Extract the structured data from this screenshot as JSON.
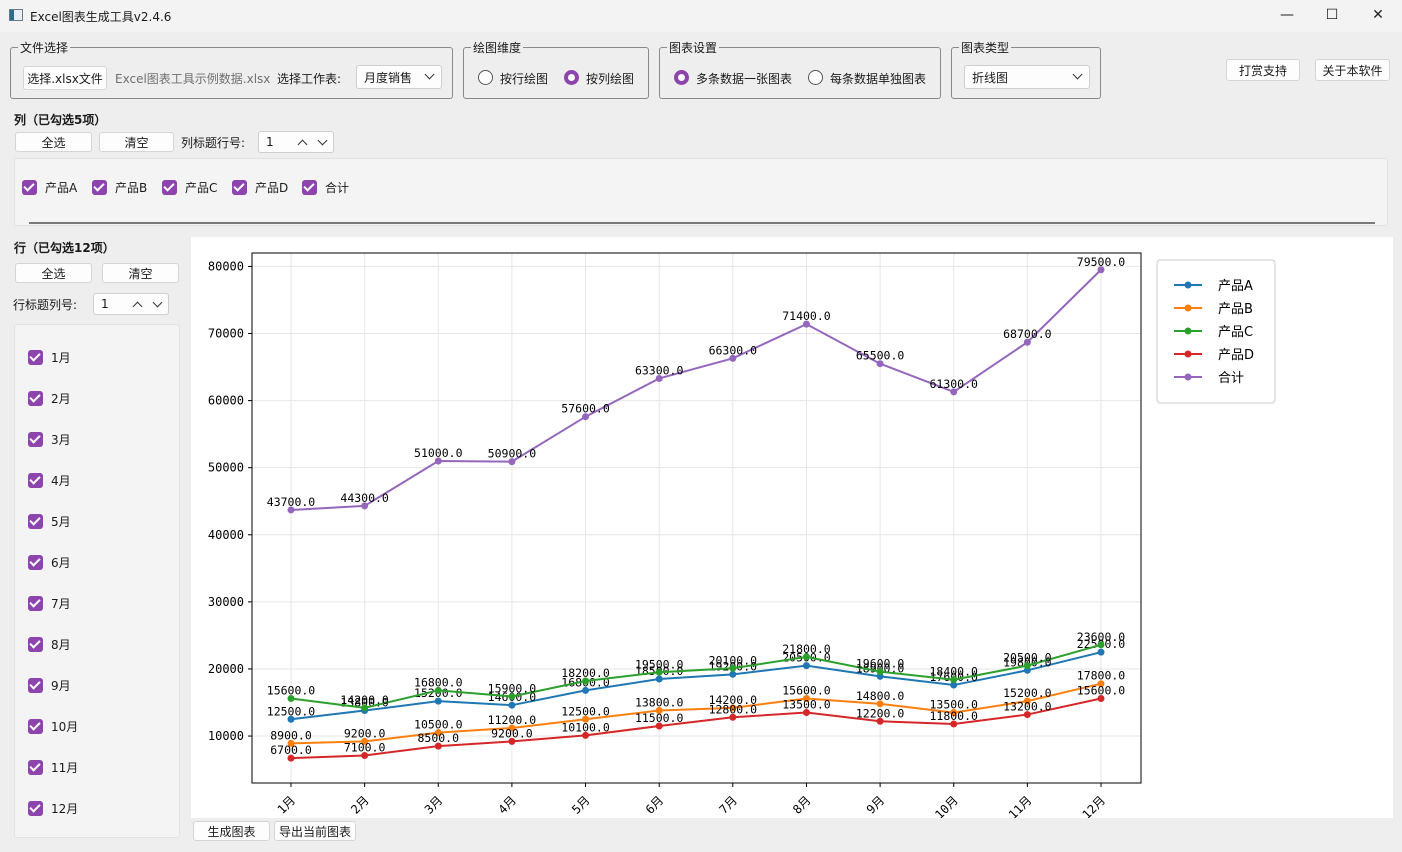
{
  "window": {
    "title": "Excel图表生成工具v2.4.6",
    "minimize_glyph": "—",
    "maximize_glyph": "☐",
    "close_glyph": "✕"
  },
  "file_group": {
    "title": "文件选择",
    "choose_button": "选择.xlsx文件",
    "file_name": "Excel图表工具示例数据.xlsx",
    "sheet_label": "选择工作表:",
    "sheet_value": "月度销售"
  },
  "dimension_group": {
    "title": "绘图维度",
    "by_row": "按行绘图",
    "by_column": "按列绘图",
    "selected": "by_column"
  },
  "chart_settings_group": {
    "title": "图表设置",
    "multi_one": "多条数据一张图表",
    "each_separate": "每条数据单独图表",
    "selected": "multi_one"
  },
  "chart_type_group": {
    "title": "图表类型",
    "value": "折线图"
  },
  "top_right": {
    "donate": "打赏支持",
    "about": "关于本软件"
  },
  "columns": {
    "header": "列（已勾选5项）",
    "select_all": "全选",
    "clear": "清空",
    "title_row_label": "列标题行号:",
    "title_row_value": "1",
    "items": [
      {
        "label": "产品A",
        "checked": true
      },
      {
        "label": "产品B",
        "checked": true
      },
      {
        "label": "产品C",
        "checked": true
      },
      {
        "label": "产品D",
        "checked": true
      },
      {
        "label": "合计",
        "checked": true
      }
    ]
  },
  "rows": {
    "header": "行（已勾选12项）",
    "select_all": "全选",
    "clear": "清空",
    "title_col_label": "行标题列号:",
    "title_col_value": "1",
    "items": [
      {
        "label": "1月",
        "checked": true
      },
      {
        "label": "2月",
        "checked": true
      },
      {
        "label": "3月",
        "checked": true
      },
      {
        "label": "4月",
        "checked": true
      },
      {
        "label": "5月",
        "checked": true
      },
      {
        "label": "6月",
        "checked": true
      },
      {
        "label": "7月",
        "checked": true
      },
      {
        "label": "8月",
        "checked": true
      },
      {
        "label": "9月",
        "checked": true
      },
      {
        "label": "10月",
        "checked": true
      },
      {
        "label": "11月",
        "checked": true
      },
      {
        "label": "12月",
        "checked": true
      }
    ]
  },
  "bottom": {
    "generate": "生成图表",
    "export": "导出当前图表"
  },
  "chart_data": {
    "type": "line",
    "categories": [
      "1月",
      "2月",
      "3月",
      "4月",
      "5月",
      "6月",
      "7月",
      "8月",
      "9月",
      "10月",
      "11月",
      "12月"
    ],
    "ylim": [
      3000,
      82000
    ],
    "yticks": [
      10000,
      20000,
      30000,
      40000,
      50000,
      60000,
      70000,
      80000
    ],
    "grid": true,
    "legend_position": "outside-right",
    "series": [
      {
        "name": "产品A",
        "color": "#1f77b4",
        "values": [
          12500,
          13800,
          15200,
          14600,
          16800,
          18500,
          19200,
          20500,
          18900,
          17600,
          19800,
          22500
        ]
      },
      {
        "name": "产品B",
        "color": "#ff7f0e",
        "values": [
          8900,
          9200,
          10500,
          11200,
          12500,
          13800,
          14200,
          15600,
          14800,
          13500,
          15200,
          17800
        ]
      },
      {
        "name": "产品C",
        "color": "#2ca02c",
        "values": [
          15600,
          14200,
          16800,
          15900,
          18200,
          19500,
          20100,
          21800,
          19600,
          18400,
          20500,
          23600
        ]
      },
      {
        "name": "产品D",
        "color": "#d62728",
        "values": [
          6700,
          7100,
          8500,
          9200,
          10100,
          11500,
          12800,
          13500,
          12200,
          11800,
          13200,
          15600
        ]
      },
      {
        "name": "合计",
        "color": "#9467bd",
        "values": [
          43700,
          44300,
          51000,
          50900,
          57600,
          63300,
          66300,
          71400,
          65500,
          61300,
          68700,
          79500
        ]
      }
    ]
  }
}
